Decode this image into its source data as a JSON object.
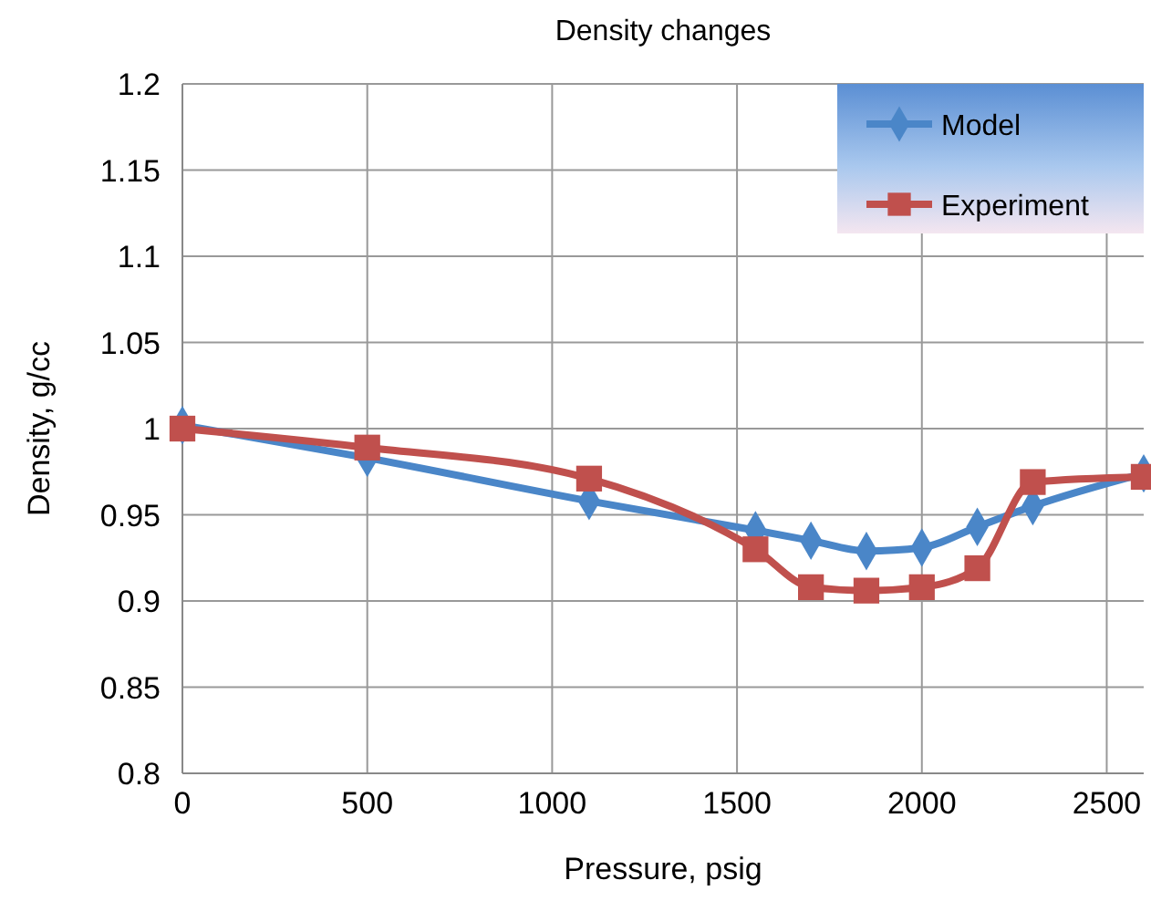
{
  "chart_data": {
    "type": "line",
    "title": "Density changes",
    "xlabel": "Pressure, psig",
    "ylabel": "Density, g/cc",
    "x": [
      0,
      500,
      1100,
      1550,
      1700,
      1850,
      2000,
      2150,
      2300,
      2600
    ],
    "series": [
      {
        "name": "Model",
        "color": "#4a86c8",
        "marker": "diamond",
        "values": [
          1.002,
          0.983,
          0.958,
          0.941,
          0.935,
          0.929,
          0.931,
          0.943,
          0.955,
          0.974
        ]
      },
      {
        "name": "Experiment",
        "color": "#c0504d",
        "marker": "square",
        "values": [
          1.0,
          0.989,
          0.971,
          0.93,
          0.908,
          0.906,
          0.908,
          0.919,
          0.969,
          0.972
        ]
      }
    ],
    "xlim": [
      0,
      2600
    ],
    "xticks": [
      0,
      500,
      1000,
      1500,
      2000,
      2500
    ],
    "ylim": [
      0.8,
      1.2
    ],
    "yticks": [
      {
        "value": 0.8,
        "label": "0.8"
      },
      {
        "value": 0.85,
        "label": "0.85"
      },
      {
        "value": 0.9,
        "label": "0.9"
      },
      {
        "value": 0.95,
        "label": "0.95"
      },
      {
        "value": 1,
        "label": "1"
      },
      {
        "value": 1.05,
        "label": "1.05"
      },
      {
        "value": 1.1,
        "label": "1.1"
      },
      {
        "value": 1.15,
        "label": "1.15"
      },
      {
        "value": 1.2,
        "label": "1.2"
      }
    ],
    "grid": true,
    "legend": "top right",
    "line_style": "solid"
  }
}
